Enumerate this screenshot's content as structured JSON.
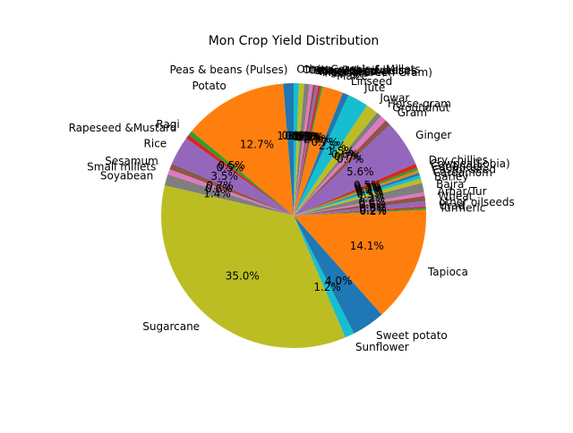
{
  "chart_data": {
    "type": "pie",
    "title": "Mon Crop Yield Distribution",
    "start_angle_deg": 90,
    "direction": "counterclockwise",
    "autopct_format": "%.1f%%",
    "colors": [
      "#1f77b4",
      "#ff7f0e",
      "#2ca02c",
      "#d62728",
      "#9467bd",
      "#8c564b",
      "#e377c2",
      "#7f7f7f",
      "#bcbd22",
      "#17becf"
    ],
    "slices": [
      {
        "label": "Peas & beans (Pulses)",
        "value": 1.2
      },
      {
        "label": "Potato",
        "value": 12.0
      },
      {
        "label": "Ragi",
        "value": 0.5
      },
      {
        "label": "Rapeseed &Mustard",
        "value": 0.5
      },
      {
        "label": "Rice",
        "value": 3.3
      },
      {
        "label": "Sesamum",
        "value": 0.7
      },
      {
        "label": "Small millets",
        "value": 0.6
      },
      {
        "label": "Soyabean",
        "value": 1.3
      },
      {
        "label": "Sugarcane",
        "value": 33.0
      },
      {
        "label": "Sunflower",
        "value": 1.1
      },
      {
        "label": "Sweet potato",
        "value": 3.8
      },
      {
        "label": "Tapioca",
        "value": 13.3
      },
      {
        "label": "Turmeric",
        "value": 0.2
      },
      {
        "label": "Urad",
        "value": 0.2
      },
      {
        "label": "other oilseeds",
        "value": 0.6
      },
      {
        "label": "Wheat",
        "value": 0.6
      },
      {
        "label": "Arhar/Tur",
        "value": 0.4
      },
      {
        "label": "Bajra",
        "value": 1.1
      },
      {
        "label": "Barley",
        "value": 0.5
      },
      {
        "label": "Cardamom",
        "value": 0.4
      },
      {
        "label": "Castor seed",
        "value": 0.3
      },
      {
        "label": "Coriander",
        "value": 0.3
      },
      {
        "label": "Cowpea(Lobia)",
        "value": 0.3
      },
      {
        "label": "Dry chillies",
        "value": 0.5
      },
      {
        "label": "Ginger",
        "value": 5.3
      },
      {
        "label": "Gram",
        "value": 0.7
      },
      {
        "label": "Groundnut",
        "value": 0.7
      },
      {
        "label": "Horse-gram",
        "value": 0.6
      },
      {
        "label": "Jowar",
        "value": 1.4
      },
      {
        "label": "Jute",
        "value": 2.4
      },
      {
        "label": "Linseed",
        "value": 0.7
      },
      {
        "label": "Maize",
        "value": 2.4
      },
      {
        "label": "Masoor",
        "value": 0.2
      },
      {
        "label": "Moong(Green Gram)",
        "value": 0.3
      },
      {
        "label": "Niger seed",
        "value": 0.3
      },
      {
        "label": "Oilseeds total",
        "value": 0.3
      },
      {
        "label": "Other Kharif pulses",
        "value": 0.4
      },
      {
        "label": "Other Rabi pulses",
        "value": 0.6
      },
      {
        "label": "Onion",
        "value": 0.6
      },
      {
        "label": "Other Cereals & Millets",
        "value": 0.6
      }
    ]
  }
}
